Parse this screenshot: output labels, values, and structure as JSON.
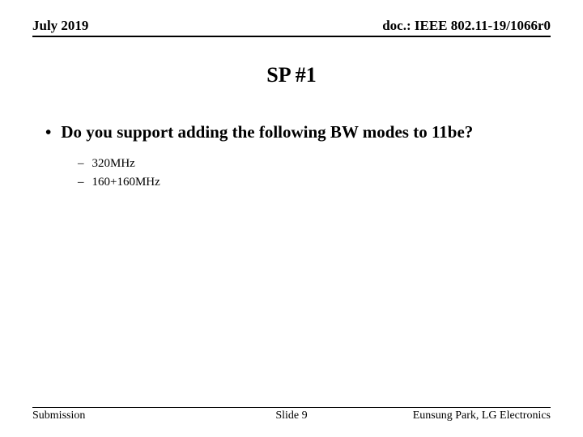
{
  "header": {
    "date": "July 2019",
    "docref": "doc.: IEEE 802.11-19/1066r0"
  },
  "title": "SP #1",
  "content": {
    "main_bullet": "Do you support adding the following BW modes to 11be?",
    "sub_items": [
      "320MHz",
      "160+160MHz"
    ]
  },
  "footer": {
    "left": "Submission",
    "center": "Slide 9",
    "right": "Eunsung Park, LG Electronics"
  }
}
